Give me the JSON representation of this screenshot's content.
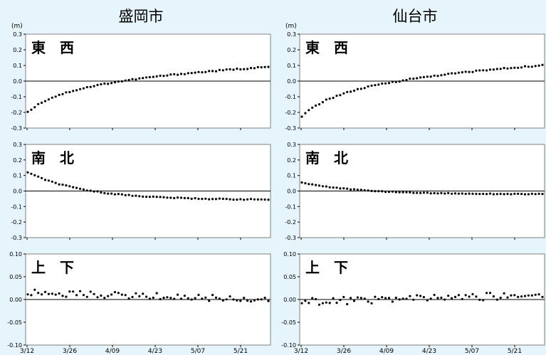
{
  "chart_data": [
    {
      "type": "scatter",
      "title": "盛岡市",
      "unit": "(m)",
      "x_ticks": [
        "3/12",
        "3/26",
        "4/09",
        "4/23",
        "5/07",
        "5/21"
      ],
      "panels": [
        {
          "label": "東　西",
          "ylim": [
            -0.3,
            0.3
          ],
          "yticks": [
            "0.3",
            "0.2",
            "0.1",
            "0.0",
            "-0.1",
            "-0.2",
            "-0.3"
          ],
          "curve": {
            "kind": "log",
            "start": -0.2,
            "end": 0.09,
            "noise": 0.004
          }
        },
        {
          "label": "南　北",
          "ylim": [
            -0.3,
            0.3
          ],
          "yticks": [
            "0.3",
            "0.2",
            "0.1",
            "0.0",
            "-0.1",
            "-0.2",
            "-0.3"
          ],
          "curve": {
            "kind": "exp",
            "start": 0.12,
            "end": -0.055,
            "noise": 0.003
          }
        },
        {
          "label": "上　下",
          "ylim": [
            -0.1,
            0.1
          ],
          "yticks": [
            "0.10",
            "0.05",
            "0.00",
            "-0.05",
            "-0.10"
          ],
          "curve": {
            "kind": "flat",
            "start": 0.015,
            "end": 0.0,
            "noise": 0.007
          }
        }
      ]
    },
    {
      "type": "scatter",
      "title": "仙台市",
      "unit": "(m)",
      "x_ticks": [
        "3/12",
        "3/26",
        "4/09",
        "4/23",
        "5/07",
        "5/21"
      ],
      "panels": [
        {
          "label": "東　西",
          "ylim": [
            -0.3,
            0.3
          ],
          "yticks": [
            "0.3",
            "0.2",
            "0.1",
            "0.0",
            "-0.1",
            "-0.2",
            "-0.3"
          ],
          "curve": {
            "kind": "log",
            "start": -0.23,
            "end": 0.1,
            "noise": 0.004
          }
        },
        {
          "label": "南　北",
          "ylim": [
            -0.3,
            0.3
          ],
          "yticks": [
            "0.3",
            "0.2",
            "0.1",
            "0.0",
            "-0.1",
            "-0.2",
            "-0.3"
          ],
          "curve": {
            "kind": "exp",
            "start": 0.055,
            "end": -0.02,
            "noise": 0.002
          }
        },
        {
          "label": "上　下",
          "ylim": [
            -0.1,
            0.1
          ],
          "yticks": [
            "0.10",
            "0.05",
            "0.00",
            "-0.05",
            "-0.10"
          ],
          "curve": {
            "kind": "flat",
            "start": -0.005,
            "end": 0.01,
            "noise": 0.008
          }
        }
      ]
    }
  ],
  "colors": {
    "background": "#e6f4fb",
    "plot_bg": "#ffffff",
    "frame": "#808080",
    "grid": "#d0d0d0",
    "marker": "#000000"
  }
}
